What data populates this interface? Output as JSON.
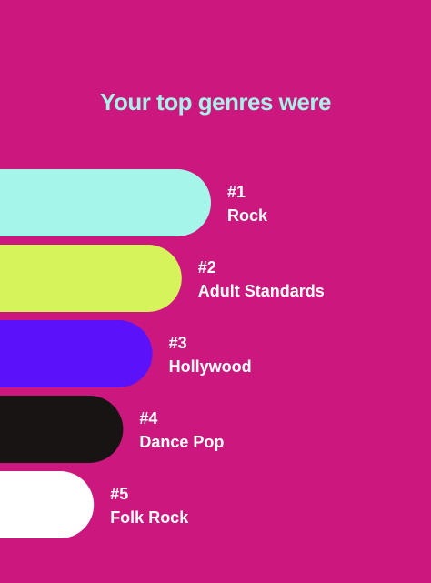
{
  "header": {
    "title": "Your top genres were",
    "title_color": "#a8f0e8"
  },
  "background": "#cc187e",
  "genres": [
    {
      "rank": "#1",
      "name": "Rock",
      "color": "#a6f5ea"
    },
    {
      "rank": "#2",
      "name": "Adult Standards",
      "color": "#d7f35c"
    },
    {
      "rank": "#3",
      "name": "Hollywood",
      "color": "#5b12fb"
    },
    {
      "rank": "#4",
      "name": "Dance Pop",
      "color": "#191414"
    },
    {
      "rank": "#5",
      "name": "Folk Rock",
      "color": "#ffffff"
    }
  ]
}
